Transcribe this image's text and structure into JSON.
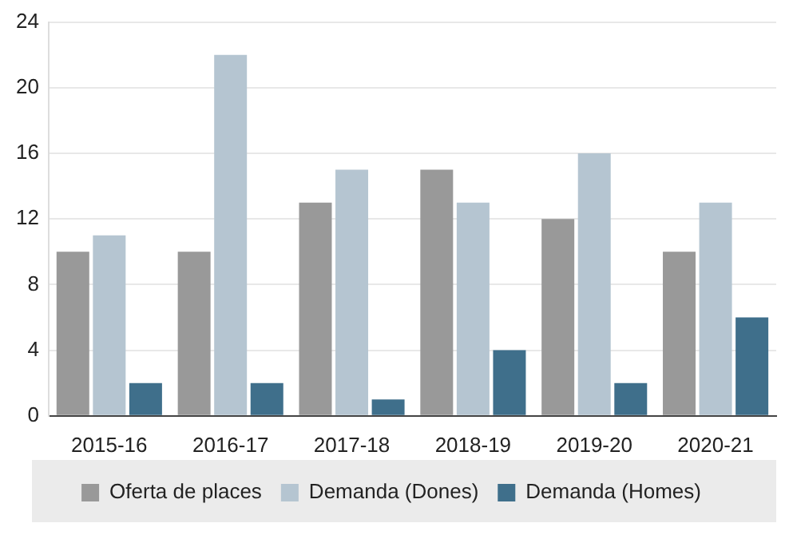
{
  "chart_data": {
    "type": "bar",
    "categories": [
      "2015-16",
      "2016-17",
      "2017-18",
      "2018-19",
      "2019-20",
      "2020-21"
    ],
    "series": [
      {
        "name": "Oferta de places",
        "color": "#999999",
        "values": [
          10,
          10,
          13,
          15,
          12,
          10
        ]
      },
      {
        "name": "Demanda (Dones)",
        "color": "#b5c5d1",
        "values": [
          11,
          22,
          15,
          13,
          16,
          13
        ]
      },
      {
        "name": "Demanda (Homes)",
        "color": "#3f6f8b",
        "values": [
          2,
          2,
          1,
          4,
          2,
          6
        ]
      }
    ],
    "ylim": [
      0,
      24
    ],
    "yticks": [
      0,
      4,
      8,
      12,
      16,
      20,
      24
    ],
    "grid": "y",
    "legend": "bottom"
  }
}
